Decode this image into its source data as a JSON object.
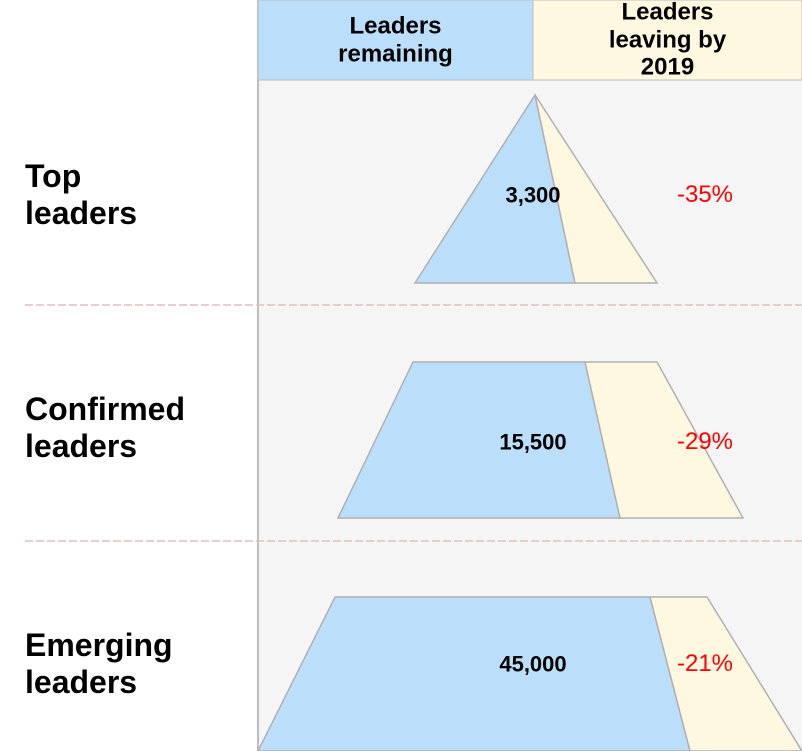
{
  "chart_data": {
    "type": "pyramid",
    "categories": [
      "Top leaders",
      "Confirmed leaders",
      "Emerging leaders"
    ],
    "series": [
      {
        "name": "Leaders remaining",
        "color": "#bbdefb",
        "values": [
          3300,
          15500,
          45000
        ],
        "value_labels": [
          "3,300",
          "15,500",
          "45,000"
        ]
      },
      {
        "name": "Leaders leaving by 2019",
        "color": "#fff8e1",
        "values": [
          -35,
          -29,
          -21
        ],
        "value_labels": [
          "-35%",
          "-29%",
          "-21%"
        ],
        "label_color": "#ff0000"
      }
    ]
  }
}
